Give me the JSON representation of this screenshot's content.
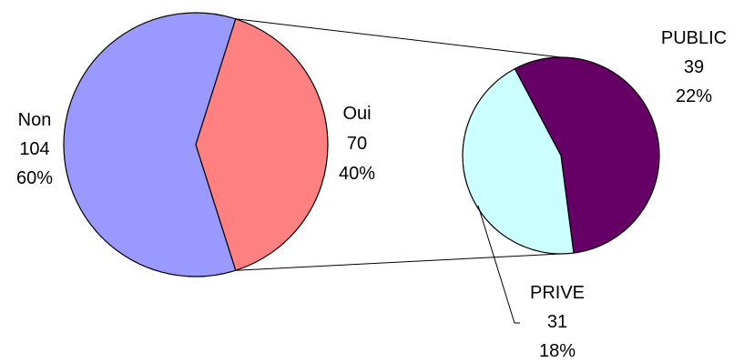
{
  "chart_data": {
    "type": "pie",
    "title": "",
    "primary": {
      "slices": [
        {
          "name": "Non",
          "value": 104,
          "percent": "60%",
          "color": "#9999ff"
        },
        {
          "name": "Oui",
          "value": 70,
          "percent": "40%",
          "color": "#ff8080"
        }
      ]
    },
    "secondary": {
      "breakdown_of": "Oui",
      "slices": [
        {
          "name": "PUBLIC",
          "value": 39,
          "percent": "22%",
          "color": "#660066"
        },
        {
          "name": "PRIVE",
          "value": 31,
          "percent": "18%",
          "color": "#ccffff"
        }
      ]
    }
  }
}
